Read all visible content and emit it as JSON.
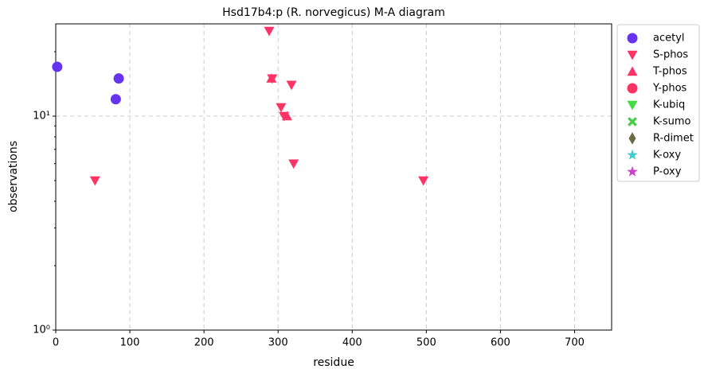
{
  "chart_data": {
    "type": "scatter",
    "title": "Hsd17b4:p (R. norvegicus) M-A diagram",
    "xlabel": "residue",
    "ylabel": "observations",
    "log_y": true,
    "grid": true,
    "legend": "outside right",
    "xlim": [
      0,
      750
    ],
    "xticks": [
      0,
      100,
      200,
      300,
      400,
      500,
      600,
      700
    ],
    "ylim": [
      1,
      27
    ],
    "yticks": [
      {
        "value": 1,
        "label": "10⁰"
      },
      {
        "value": 10,
        "label": "10¹"
      }
    ],
    "yminor": [
      2,
      3,
      4,
      5,
      6,
      7,
      8,
      9,
      20
    ],
    "series": [
      {
        "name": "acetyl",
        "color": "#6633ee",
        "marker": "circle",
        "x": [
          2,
          85,
          81
        ],
        "values": [
          17,
          15,
          12
        ]
      },
      {
        "name": "S-phos",
        "color": "#ff3366",
        "marker": "down",
        "x": [
          53,
          288,
          292,
          318,
          304,
          308,
          321,
          496
        ],
        "values": [
          5,
          25,
          15,
          14,
          11,
          10,
          6,
          5
        ]
      },
      {
        "name": "T-phos",
        "color": "#ff3366",
        "marker": "up",
        "x": [
          291,
          312
        ],
        "values": [
          15,
          10
        ]
      },
      {
        "name": "Y-phos",
        "color": "#ff3366",
        "marker": "circle",
        "x": [],
        "values": []
      },
      {
        "name": "K-ubiq",
        "color": "#44dd44",
        "marker": "down",
        "x": [],
        "values": []
      },
      {
        "name": "K-sumo",
        "color": "#44cc44",
        "marker": "x",
        "x": [],
        "values": []
      },
      {
        "name": "R-dimet",
        "color": "#6b6b47",
        "marker": "diamond",
        "x": [],
        "values": []
      },
      {
        "name": "K-oxy",
        "color": "#44cccc",
        "marker": "star",
        "x": [],
        "values": []
      },
      {
        "name": "P-oxy",
        "color": "#cc44cc",
        "marker": "star",
        "x": [],
        "values": []
      }
    ]
  }
}
